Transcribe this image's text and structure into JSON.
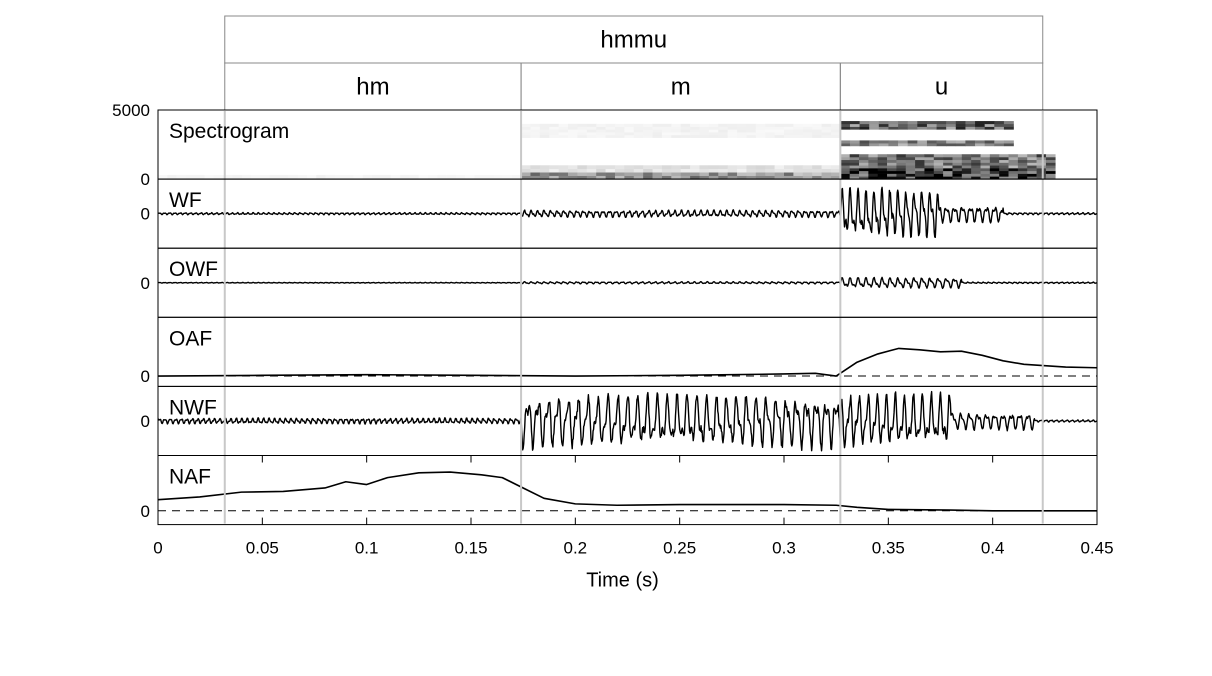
{
  "chart_data": {
    "type": "line",
    "title": "",
    "xlabel": "Time (s)",
    "xlim": [
      0,
      0.45
    ],
    "x_ticks": [
      {
        "value": 0,
        "label": "0"
      },
      {
        "value": 0.05,
        "label": "0.05"
      },
      {
        "value": 0.1,
        "label": "0.1"
      },
      {
        "value": 0.15,
        "label": "0.15"
      },
      {
        "value": 0.2,
        "label": "0.2"
      },
      {
        "value": 0.25,
        "label": "0.25"
      },
      {
        "value": 0.3,
        "label": "0.3"
      },
      {
        "value": 0.35,
        "label": "0.35"
      },
      {
        "value": 0.4,
        "label": "0.4"
      },
      {
        "value": 0.45,
        "label": "0.45"
      }
    ],
    "segmentation": {
      "word": {
        "label": "hmmu",
        "start": 0.032,
        "end": 0.424
      },
      "segments": [
        {
          "label": "hm",
          "start": 0.032,
          "end": 0.174
        },
        {
          "label": "m",
          "start": 0.174,
          "end": 0.327
        },
        {
          "label": "u",
          "start": 0.327,
          "end": 0.424
        }
      ]
    },
    "boundaries": [
      0.032,
      0.174,
      0.327,
      0.424
    ],
    "panels": [
      {
        "name": "Spectrogram",
        "type": "heatmap",
        "ylim": [
          0,
          5000
        ],
        "yticks": [
          {
            "value": 0,
            "label": "0"
          },
          {
            "value": 5000,
            "label": "5000"
          }
        ],
        "zero_dashed": false
      },
      {
        "name": "WF",
        "type": "line",
        "ylim": [
          -1,
          1
        ],
        "yticks": [
          {
            "value": 0,
            "label": "0"
          }
        ],
        "zero_dashed": false
      },
      {
        "name": "OWF",
        "type": "line",
        "ylim": [
          -1,
          1
        ],
        "yticks": [
          {
            "value": 0,
            "label": "0"
          }
        ],
        "zero_dashed": false
      },
      {
        "name": "OAF",
        "type": "line",
        "ylim": [
          -0.15,
          0.85
        ],
        "yticks": [
          {
            "value": 0,
            "label": "0"
          }
        ],
        "zero_dashed": true
      },
      {
        "name": "NWF",
        "type": "line",
        "ylim": [
          -1,
          1
        ],
        "yticks": [
          {
            "value": 0,
            "label": "0"
          }
        ],
        "zero_dashed": false
      },
      {
        "name": "NAF",
        "type": "line",
        "ylim": [
          -0.2,
          0.8
        ],
        "yticks": [
          {
            "value": 0,
            "label": "0"
          }
        ],
        "zero_dashed": true
      }
    ],
    "spectrogram": {
      "description_free": true,
      "cells": [
        {
          "t0": 0.174,
          "t1": 0.327,
          "f0": 0,
          "f1": 500,
          "intensity": 0.45
        },
        {
          "t0": 0.174,
          "t1": 0.327,
          "f0": 500,
          "f1": 1000,
          "intensity": 0.12
        },
        {
          "t0": 0.174,
          "t1": 0.327,
          "f0": 3000,
          "f1": 4000,
          "intensity": 0.05
        },
        {
          "t0": 0.327,
          "t1": 0.43,
          "f0": 0,
          "f1": 800,
          "intensity": 0.9
        },
        {
          "t0": 0.327,
          "t1": 0.43,
          "f0": 800,
          "f1": 1800,
          "intensity": 0.6
        },
        {
          "t0": 0.327,
          "t1": 0.41,
          "f0": 2400,
          "f1": 2800,
          "intensity": 0.55
        },
        {
          "t0": 0.327,
          "t1": 0.41,
          "f0": 3600,
          "f1": 4200,
          "intensity": 0.65
        },
        {
          "t0": 0.0,
          "t1": 0.174,
          "f0": 0,
          "f1": 300,
          "intensity": 0.04
        }
      ]
    },
    "series": {
      "OAF": {
        "x": [
          0,
          0.05,
          0.1,
          0.15,
          0.2,
          0.25,
          0.3,
          0.315,
          0.325,
          0.335,
          0.345,
          0.355,
          0.365,
          0.375,
          0.385,
          0.395,
          0.405,
          0.415,
          0.425,
          0.435,
          0.45
        ],
        "y": [
          0.0,
          0.01,
          0.02,
          0.01,
          0.0,
          0.01,
          0.03,
          0.04,
          0.0,
          0.2,
          0.32,
          0.4,
          0.38,
          0.35,
          0.36,
          0.3,
          0.22,
          0.17,
          0.15,
          0.13,
          0.12
        ]
      },
      "NAF": {
        "x": [
          0,
          0.02,
          0.04,
          0.06,
          0.08,
          0.09,
          0.1,
          0.11,
          0.125,
          0.14,
          0.155,
          0.165,
          0.175,
          0.185,
          0.2,
          0.22,
          0.25,
          0.3,
          0.325,
          0.335,
          0.35,
          0.38,
          0.4,
          0.42,
          0.45
        ],
        "y": [
          0.16,
          0.2,
          0.27,
          0.28,
          0.33,
          0.42,
          0.38,
          0.48,
          0.55,
          0.56,
          0.52,
          0.48,
          0.33,
          0.18,
          0.1,
          0.08,
          0.09,
          0.09,
          0.08,
          0.05,
          0.02,
          0.01,
          0.0,
          0.0,
          0.0
        ]
      },
      "WF": {
        "generated": true,
        "envelope": [
          {
            "t0": 0.0,
            "t1": 0.174,
            "amp": 0.03,
            "freq": 400
          },
          {
            "t0": 0.174,
            "t1": 0.327,
            "amp": 0.1,
            "freq": 320
          },
          {
            "t0": 0.327,
            "t1": 0.375,
            "amp": 0.7,
            "freq": 260
          },
          {
            "t0": 0.375,
            "t1": 0.405,
            "amp": 0.25,
            "freq": 260
          },
          {
            "t0": 0.405,
            "t1": 0.45,
            "amp": 0.03,
            "freq": 400
          }
        ]
      },
      "OWF": {
        "generated": true,
        "envelope": [
          {
            "t0": 0.0,
            "t1": 0.174,
            "amp": 0.01,
            "freq": 400
          },
          {
            "t0": 0.174,
            "t1": 0.327,
            "amp": 0.03,
            "freq": 320
          },
          {
            "t0": 0.327,
            "t1": 0.385,
            "amp": 0.15,
            "freq": 260
          },
          {
            "t0": 0.385,
            "t1": 0.45,
            "amp": 0.02,
            "freq": 400
          }
        ]
      },
      "NWF": {
        "generated": true,
        "envelope": [
          {
            "t0": 0.0,
            "t1": 0.174,
            "amp": 0.08,
            "freq": 380
          },
          {
            "t0": 0.174,
            "t1": 0.327,
            "amp": 0.75,
            "freq": 210
          },
          {
            "t0": 0.327,
            "t1": 0.38,
            "amp": 0.75,
            "freq": 230
          },
          {
            "t0": 0.38,
            "t1": 0.42,
            "amp": 0.25,
            "freq": 250
          },
          {
            "t0": 0.42,
            "t1": 0.45,
            "amp": 0.03,
            "freq": 400
          }
        ]
      }
    }
  }
}
